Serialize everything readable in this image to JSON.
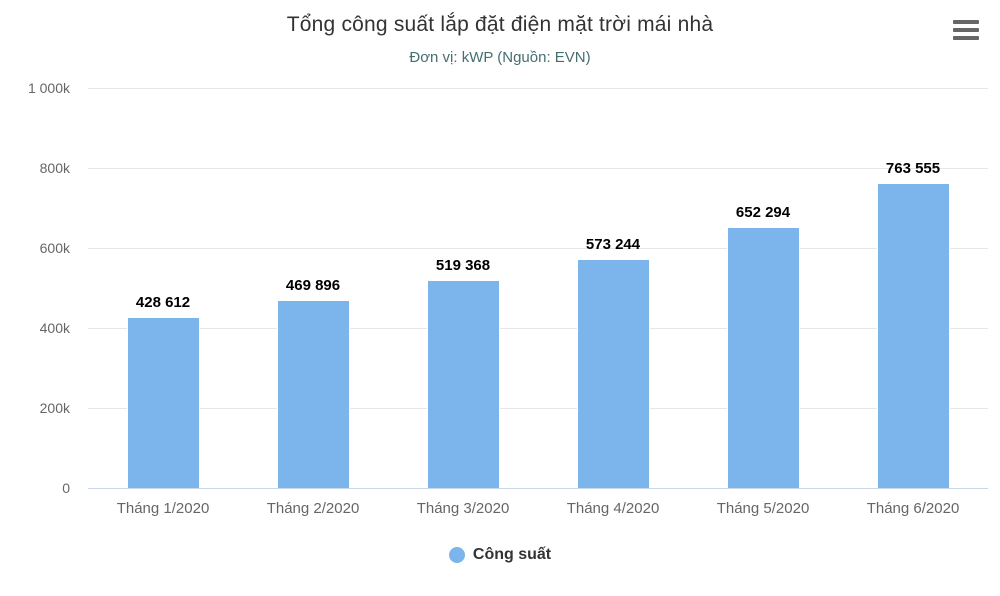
{
  "chart_data": {
    "type": "bar",
    "title": "Tổng công suất lắp đặt điện mặt trời mái nhà",
    "subtitle": "Đơn vị: kWP (Nguồn: EVN)",
    "categories": [
      "Tháng 1/2020",
      "Tháng 2/2020",
      "Tháng 3/2020",
      "Tháng 4/2020",
      "Tháng 5/2020",
      "Tháng 6/2020"
    ],
    "series": [
      {
        "name": "Công suất",
        "values": [
          428612,
          469896,
          519368,
          573244,
          652294,
          763555
        ],
        "value_labels": [
          "428 612",
          "469 896",
          "519 368",
          "573 244",
          "652 294",
          "763 555"
        ]
      }
    ],
    "ylim": [
      0,
      1000000
    ],
    "yticks": [
      {
        "value": 0,
        "label": "0"
      },
      {
        "value": 200000,
        "label": "200k"
      },
      {
        "value": 400000,
        "label": "400k"
      },
      {
        "value": 600000,
        "label": "600k"
      },
      {
        "value": 800000,
        "label": "800k"
      },
      {
        "value": 1000000,
        "label": "1 000k"
      }
    ],
    "grid": true,
    "legend_position": "bottom",
    "colors": {
      "bar": "#7cb5ec",
      "grid": "#e6e6e6",
      "axis_line": "#ccd6eb",
      "title": "#333333",
      "subtitle": "#456f6f",
      "tick_label": "#666666",
      "data_label": "#000000",
      "legend_text": "#333333",
      "menu_icon": "#666666"
    }
  },
  "export_menu": {
    "icon": "hamburger-icon"
  }
}
